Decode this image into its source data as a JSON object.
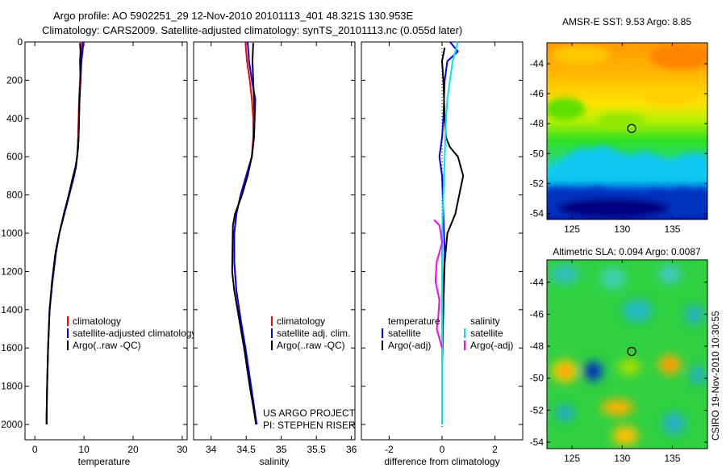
{
  "header": {
    "line1": "Argo profile: AO 5902251_29 12-Nov-2010 20101113_401 48.321S 130.953E",
    "line2": "Climatology: CARS2009. Satellite-adjusted climatology: synTS_20101113.nc (0.055d later)"
  },
  "credits": {
    "project": "US ARGO PROJECT",
    "pi": "PI: STEPHEN RISER",
    "stamp": "CSIRO 19-Nov-2010 10:30:55"
  },
  "colors": {
    "climatology": "#ff0000",
    "satellite": "#0000ff",
    "argo": "#000000",
    "argo_salinity_adj": "#ff00ff",
    "satellite_salinity": "#00e5ee"
  },
  "depth_axis": {
    "ticks": [
      0,
      200,
      400,
      600,
      800,
      1000,
      1200,
      1400,
      1600,
      1800,
      2000
    ],
    "range": [
      0,
      2080
    ]
  },
  "chart_data": [
    {
      "id": "temperature",
      "type": "line",
      "xlabel": "temperature",
      "xlim": [
        -2,
        31
      ],
      "xticks": [
        0,
        10,
        20,
        30
      ],
      "xtick_labels": [
        "0",
        "10",
        "20",
        "30"
      ],
      "legend": {
        "position": "lower-right",
        "entries": [
          {
            "label": "climatology",
            "color": "#ff0000"
          },
          {
            "label": "satellite-adjusted climatology",
            "color": "#0000ff"
          },
          {
            "label": "Argo(..raw -QC)",
            "color": "#000000"
          }
        ]
      },
      "series": [
        {
          "name": "climatology",
          "color": "#ff0000",
          "x": [
            9.6,
            9.5,
            9.4,
            9.2,
            9.0,
            8.9,
            8.8,
            8.7,
            8.6,
            8.4,
            8.0,
            7.0,
            6.0,
            5.0,
            4.3,
            3.6,
            3.0,
            2.7,
            2.5,
            2.4,
            2.4
          ],
          "depth": [
            0,
            50,
            100,
            200,
            300,
            400,
            500,
            550,
            600,
            650,
            700,
            800,
            900,
            1000,
            1100,
            1250,
            1400,
            1600,
            1800,
            1950,
            2000
          ]
        },
        {
          "name": "satellite-adjusted climatology",
          "color": "#0000ff",
          "x": [
            9.9,
            9.7,
            9.5,
            9.3,
            9.1,
            9.0,
            8.9,
            8.8,
            8.6,
            8.4,
            8.0,
            7.0,
            6.0,
            5.0,
            4.3,
            3.6,
            3.0,
            2.7,
            2.5,
            2.4,
            2.4
          ],
          "depth": [
            0,
            50,
            100,
            200,
            300,
            400,
            500,
            550,
            600,
            650,
            700,
            800,
            900,
            1000,
            1100,
            1250,
            1400,
            1600,
            1800,
            1950,
            2000
          ]
        },
        {
          "name": "Argo(..raw -QC)",
          "color": "#000000",
          "x": [
            9.2,
            9.3,
            9.2,
            9.3,
            9.1,
            9.0,
            8.9,
            8.8,
            8.6,
            8.3,
            7.8,
            6.9,
            5.9,
            5.0,
            4.2,
            3.5,
            3.0,
            2.7,
            2.5,
            2.4,
            2.4
          ],
          "depth": [
            5,
            50,
            100,
            200,
            300,
            400,
            500,
            550,
            600,
            650,
            700,
            800,
            900,
            1000,
            1100,
            1250,
            1400,
            1600,
            1800,
            1950,
            2000
          ]
        }
      ]
    },
    {
      "id": "salinity",
      "type": "line",
      "xlabel": "salinity",
      "xlim": [
        33.75,
        36.05
      ],
      "xticks": [
        34,
        34.5,
        35,
        35.5,
        36
      ],
      "xtick_labels": [
        "34",
        "34.5",
        "35",
        "35.5",
        "36"
      ],
      "legend": {
        "position": "lower-right",
        "entries": [
          {
            "label": "climatology",
            "color": "#ff0000"
          },
          {
            "label": "satellite adj. clim.",
            "color": "#0000ff"
          },
          {
            "label": "Argo(..raw -QC)",
            "color": "#000000"
          }
        ]
      },
      "series": [
        {
          "name": "climatology",
          "color": "#ff0000",
          "x": [
            34.49,
            34.51,
            34.55,
            34.58,
            34.6,
            34.6,
            34.58,
            34.5,
            34.42,
            34.36,
            34.33,
            34.33,
            34.36,
            34.42,
            34.48,
            34.56,
            34.62,
            34.64
          ],
          "depth": [
            0,
            100,
            200,
            300,
            400,
            500,
            600,
            700,
            800,
            900,
            1000,
            1150,
            1300,
            1450,
            1600,
            1800,
            1950,
            2000
          ]
        },
        {
          "name": "satellite adj. clim.",
          "color": "#0000ff",
          "x": [
            34.52,
            34.54,
            34.58,
            34.63,
            34.62,
            34.61,
            34.58,
            34.5,
            34.42,
            34.36,
            34.33,
            34.33,
            34.36,
            34.42,
            34.49,
            34.57,
            34.63,
            34.65
          ],
          "depth": [
            0,
            100,
            200,
            300,
            400,
            500,
            600,
            700,
            800,
            900,
            1000,
            1150,
            1300,
            1450,
            1600,
            1800,
            1950,
            2000
          ]
        },
        {
          "name": "Argo(..raw -QC)",
          "color": "#000000",
          "x": [
            34.6,
            34.59,
            34.6,
            34.61,
            34.62,
            34.61,
            34.58,
            34.52,
            34.44,
            34.34,
            34.31,
            34.3,
            34.33,
            34.4,
            34.47,
            34.55,
            34.62,
            34.64
          ],
          "depth": [
            5,
            100,
            200,
            300,
            400,
            500,
            600,
            700,
            800,
            900,
            960,
            1200,
            1300,
            1450,
            1600,
            1800,
            1950,
            2000
          ]
        }
      ]
    },
    {
      "id": "difference",
      "type": "line",
      "xlabel": "difference from climatology",
      "xlim": [
        -3.05,
        3.05
      ],
      "xticks": [
        -2,
        0,
        2
      ],
      "xtick_labels": [
        "-2",
        "0",
        "2"
      ],
      "legend": {
        "position": "lower-center",
        "temperature_title": "temperature",
        "salinity_title": "salinity",
        "temperature_entries": [
          {
            "label": "satellite",
            "color": "#0000ff"
          },
          {
            "label": "Argo(-adj)",
            "color": "#000000"
          }
        ],
        "salinity_entries": [
          {
            "label": "satellite",
            "color": "#00e5ee"
          },
          {
            "label": "Argo(-adj)",
            "color": "#ff00ff"
          }
        ]
      },
      "series": [
        {
          "name": "temperature satellite",
          "color": "#0000ff",
          "x": [
            0.3,
            0.6,
            0.2,
            0.1,
            0.05,
            0.0,
            -0.1,
            0.0,
            0.05,
            0.1,
            0.05,
            0.0,
            0.0,
            0.0,
            0.0
          ],
          "depth": [
            0,
            50,
            100,
            200,
            400,
            500,
            600,
            700,
            900,
            1100,
            1300,
            1500,
            1700,
            1900,
            2000
          ]
        },
        {
          "name": "temperature Argo(-adj)",
          "color": "#000000",
          "x": [
            0.1,
            0.0,
            0.05,
            0.1,
            0.15,
            0.3,
            0.6,
            0.8,
            0.65,
            0.5,
            0.35,
            0.2,
            0.1,
            0.05,
            0.0,
            0.0
          ],
          "depth": [
            30,
            100,
            200,
            400,
            500,
            550,
            600,
            700,
            800,
            900,
            950,
            1000,
            1150,
            1400,
            1700,
            1800
          ]
        },
        {
          "name": "salinity satellite",
          "color": "#00e5ee",
          "x": [
            0.6,
            0.4,
            0.3,
            0.2,
            0.15,
            0.1,
            0.05,
            0.0,
            0.0,
            0.0,
            0.0
          ],
          "depth": [
            0,
            100,
            200,
            300,
            400,
            600,
            800,
            1000,
            1300,
            1600,
            2000
          ]
        },
        {
          "name": "salinity Argo(-adj)",
          "color": "#ff00ff",
          "x": [
            -0.3,
            -0.1,
            -0.05,
            0.0,
            -0.2,
            -0.25,
            -0.1,
            -0.15,
            -0.2,
            -0.1,
            0.0
          ],
          "depth": [
            930,
            960,
            1000,
            1050,
            1150,
            1250,
            1350,
            1450,
            1500,
            1550,
            1600
          ]
        }
      ]
    },
    {
      "id": "sst_map",
      "type": "heatmap",
      "title": "AMSR-E SST: 9.53 Argo: 8.85",
      "xlim": [
        122.5,
        138.5
      ],
      "ylim": [
        -54.4,
        -42.6
      ],
      "xticks": [
        125,
        130,
        135
      ],
      "xtick_labels": [
        "125",
        "130",
        "135"
      ],
      "yticks": [
        -44,
        -46,
        -48,
        -50,
        -52,
        -54
      ],
      "ytick_labels": [
        "-44",
        "-46",
        "-48",
        "-50",
        "-52",
        "-54"
      ],
      "marker": {
        "lon": 130.953,
        "lat": -48.321
      }
    },
    {
      "id": "sla_map",
      "type": "heatmap",
      "title": "Altimetric SLA: 0.094 Argo: 0.0087",
      "xlim": [
        122.5,
        138.5
      ],
      "ylim": [
        -54.4,
        -42.6
      ],
      "xticks": [
        125,
        130,
        135
      ],
      "xtick_labels": [
        "125",
        "130",
        "135"
      ],
      "yticks": [
        -44,
        -46,
        -48,
        -50,
        -52,
        -54
      ],
      "ytick_labels": [
        "-44",
        "-46",
        "-48",
        "-50",
        "-52",
        "-54"
      ],
      "marker": {
        "lon": 130.953,
        "lat": -48.321
      }
    }
  ]
}
